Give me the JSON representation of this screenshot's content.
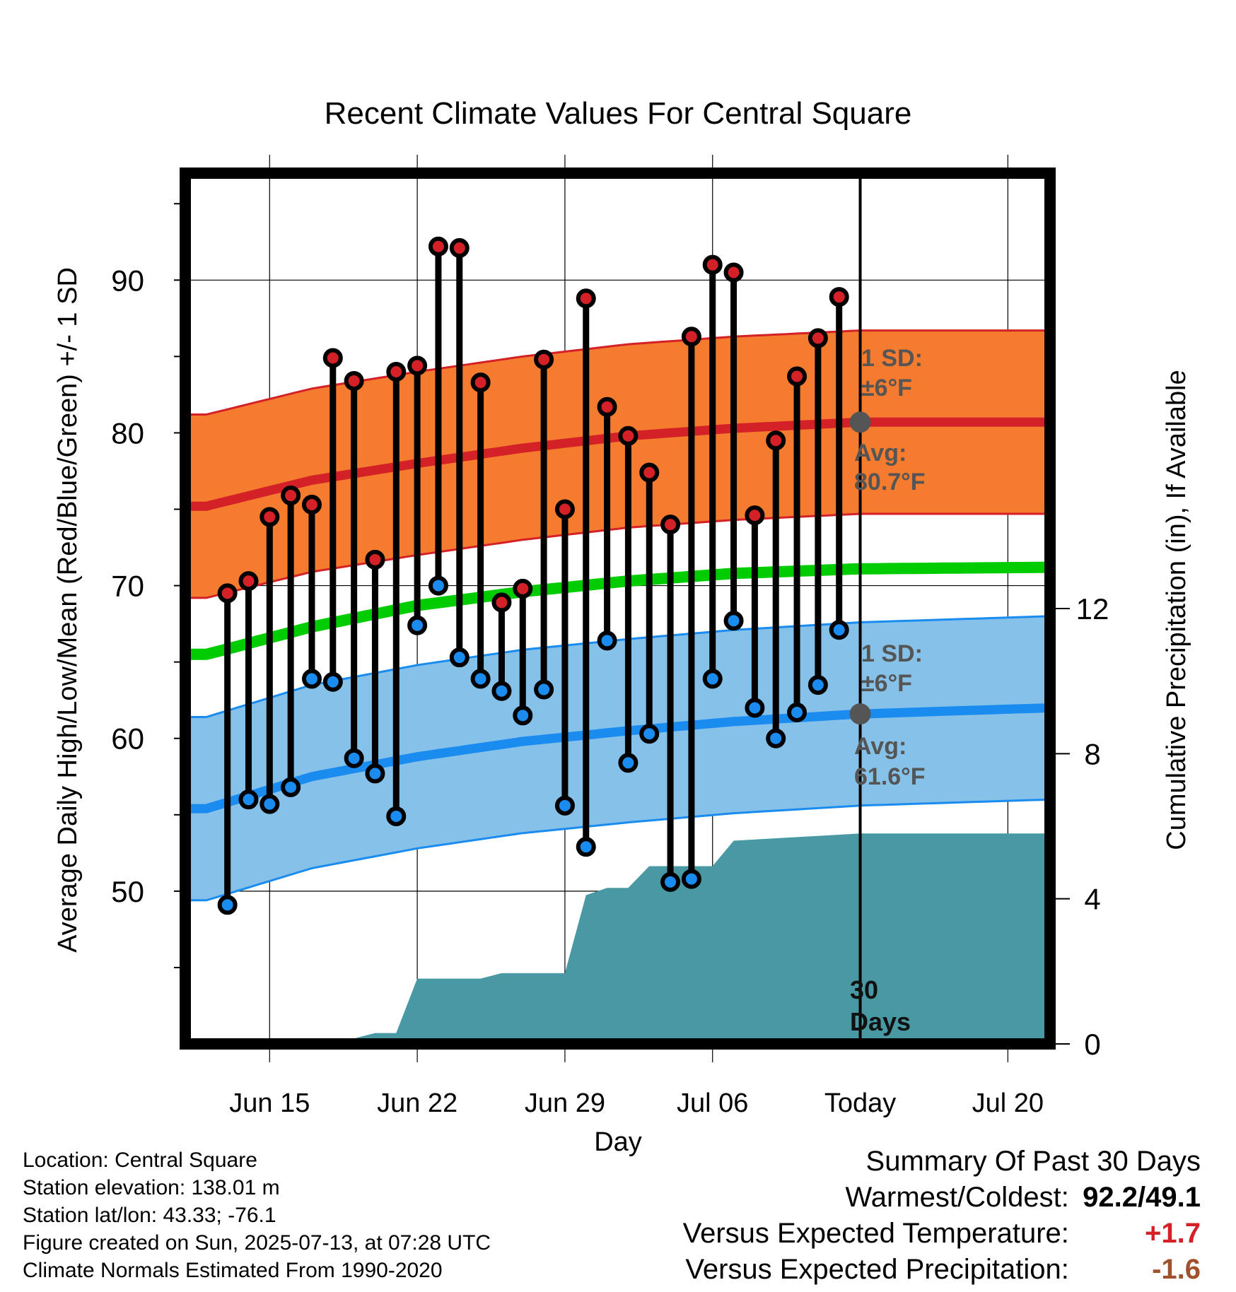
{
  "chart_data": {
    "type": "line",
    "title": "Recent Climate Values For Central Square",
    "xlabel": "Day",
    "ylabel": "Average Daily High/Low/Mean (Red/Blue/Green) +/- 1 SD",
    "y2label": "Cumulative Precipitation (in), If Available",
    "ylim": [
      40,
      97
    ],
    "y2lim": [
      0,
      24
    ],
    "yticks": [
      50,
      60,
      70,
      80,
      90
    ],
    "y2ticks": [
      0,
      4,
      8,
      12
    ],
    "xlim": [
      "2025-06-11",
      "2025-07-22"
    ],
    "xticks": [
      {
        "date": "2025-06-15",
        "label": "Jun 15"
      },
      {
        "date": "2025-06-22",
        "label": "Jun 22"
      },
      {
        "date": "2025-06-29",
        "label": "Jun 29"
      },
      {
        "date": "2025-07-06",
        "label": "Jul 06"
      },
      {
        "date": "2025-07-13",
        "label": "Today"
      },
      {
        "date": "2025-07-20",
        "label": "Jul 20"
      }
    ],
    "grid": true,
    "today": "2025-07-13",
    "daily": [
      {
        "date": "2025-06-13",
        "high": 69.5,
        "low": 49.1
      },
      {
        "date": "2025-06-14",
        "high": 70.3,
        "low": 56.0
      },
      {
        "date": "2025-06-15",
        "high": 74.5,
        "low": 55.7
      },
      {
        "date": "2025-06-16",
        "high": 75.9,
        "low": 56.8
      },
      {
        "date": "2025-06-17",
        "high": 75.3,
        "low": 63.9
      },
      {
        "date": "2025-06-18",
        "high": 84.9,
        "low": 63.7
      },
      {
        "date": "2025-06-19",
        "high": 83.4,
        "low": 58.7
      },
      {
        "date": "2025-06-20",
        "high": 71.7,
        "low": 57.7
      },
      {
        "date": "2025-06-21",
        "high": 84.0,
        "low": 54.9
      },
      {
        "date": "2025-06-22",
        "high": 84.4,
        "low": 67.4
      },
      {
        "date": "2025-06-23",
        "high": 92.2,
        "low": 70.0
      },
      {
        "date": "2025-06-24",
        "high": 92.1,
        "low": 65.3
      },
      {
        "date": "2025-06-25",
        "high": 83.3,
        "low": 63.9
      },
      {
        "date": "2025-06-26",
        "high": 68.9,
        "low": 63.1
      },
      {
        "date": "2025-06-27",
        "high": 69.8,
        "low": 61.5
      },
      {
        "date": "2025-06-28",
        "high": 84.8,
        "low": 63.2
      },
      {
        "date": "2025-06-29",
        "high": 75.0,
        "low": 55.6
      },
      {
        "date": "2025-06-30",
        "high": 88.8,
        "low": 52.9
      },
      {
        "date": "2025-07-01",
        "high": 81.7,
        "low": 66.4
      },
      {
        "date": "2025-07-02",
        "high": 79.8,
        "low": 58.4
      },
      {
        "date": "2025-07-03",
        "high": 77.4,
        "low": 60.3
      },
      {
        "date": "2025-07-04",
        "high": 74.0,
        "low": 50.6
      },
      {
        "date": "2025-07-05",
        "high": 86.3,
        "low": 50.8
      },
      {
        "date": "2025-07-06",
        "high": 91.0,
        "low": 63.9
      },
      {
        "date": "2025-07-07",
        "high": 90.5,
        "low": 67.7
      },
      {
        "date": "2025-07-08",
        "high": 74.6,
        "low": 62.0
      },
      {
        "date": "2025-07-09",
        "high": 79.5,
        "low": 60.0
      },
      {
        "date": "2025-07-10",
        "high": 83.7,
        "low": 61.7
      },
      {
        "date": "2025-07-11",
        "high": 86.2,
        "low": 63.5
      },
      {
        "date": "2025-07-12",
        "high": 88.9,
        "low": 67.1
      }
    ],
    "normals": {
      "dates": [
        "2025-06-12",
        "2025-06-17",
        "2025-06-22",
        "2025-06-27",
        "2025-07-02",
        "2025-07-07",
        "2025-07-13",
        "2025-07-22"
      ],
      "high_avg": [
        75.2,
        76.9,
        78.0,
        79.0,
        79.8,
        80.3,
        80.7,
        80.7
      ],
      "low_avg": [
        55.4,
        57.5,
        58.8,
        59.8,
        60.5,
        61.1,
        61.6,
        62.0
      ],
      "mean_avg": [
        65.5,
        67.3,
        68.7,
        69.6,
        70.3,
        70.8,
        71.1,
        71.2
      ],
      "sd": 6
    },
    "precip": {
      "dates": [
        "2025-06-12",
        "2025-06-18",
        "2025-06-19",
        "2025-06-20",
        "2025-06-21",
        "2025-06-22",
        "2025-06-25",
        "2025-06-26",
        "2025-06-29",
        "2025-06-30",
        "2025-07-01",
        "2025-07-02",
        "2025-07-03",
        "2025-07-06",
        "2025-07-07",
        "2025-07-13",
        "2025-07-22"
      ],
      "values": [
        0.0,
        0.0,
        0.15,
        0.3,
        0.3,
        1.8,
        1.8,
        1.95,
        1.95,
        4.1,
        4.3,
        4.3,
        4.9,
        4.9,
        5.6,
        5.8,
        5.8
      ]
    },
    "annotations": {
      "high_sd_title": "1 SD:",
      "high_sd_value": "±6°F",
      "high_avg_title": "Avg:",
      "high_avg_value": "80.7°F",
      "low_sd_title": "1 SD:",
      "low_sd_value": "±6°F",
      "low_avg_title": "Avg:",
      "low_avg_value": "61.6°F",
      "days_top": "30",
      "days_bottom": "Days"
    },
    "colors": {
      "high": "#d42127",
      "high_band": "#f57b2e",
      "low": "#1a8cf0",
      "low_band": "#85c1e8",
      "mean": "#00cc00",
      "precip": "#4899a3",
      "annotation": "#555555"
    }
  },
  "info": {
    "location": "Location: Central Square",
    "elevation": "Station elevation: 138.01 m",
    "latlon": "Station lat/lon: 43.33; -76.1",
    "created": "Figure created on Sun, 2025-07-13, at 07:28 UTC",
    "normals": "Climate Normals Estimated From 1990-2020"
  },
  "summary": {
    "title": "Summary Of Past 30 Days",
    "warmest_label": "Warmest/Coldest:",
    "warmest_value": "92.2/49.1",
    "temp_label": "Versus Expected Temperature:",
    "temp_value": "+1.7",
    "temp_color": "#d42127",
    "precip_label": "Versus Expected Precipitation:",
    "precip_value": "-1.6",
    "precip_color": "#a0522d"
  }
}
